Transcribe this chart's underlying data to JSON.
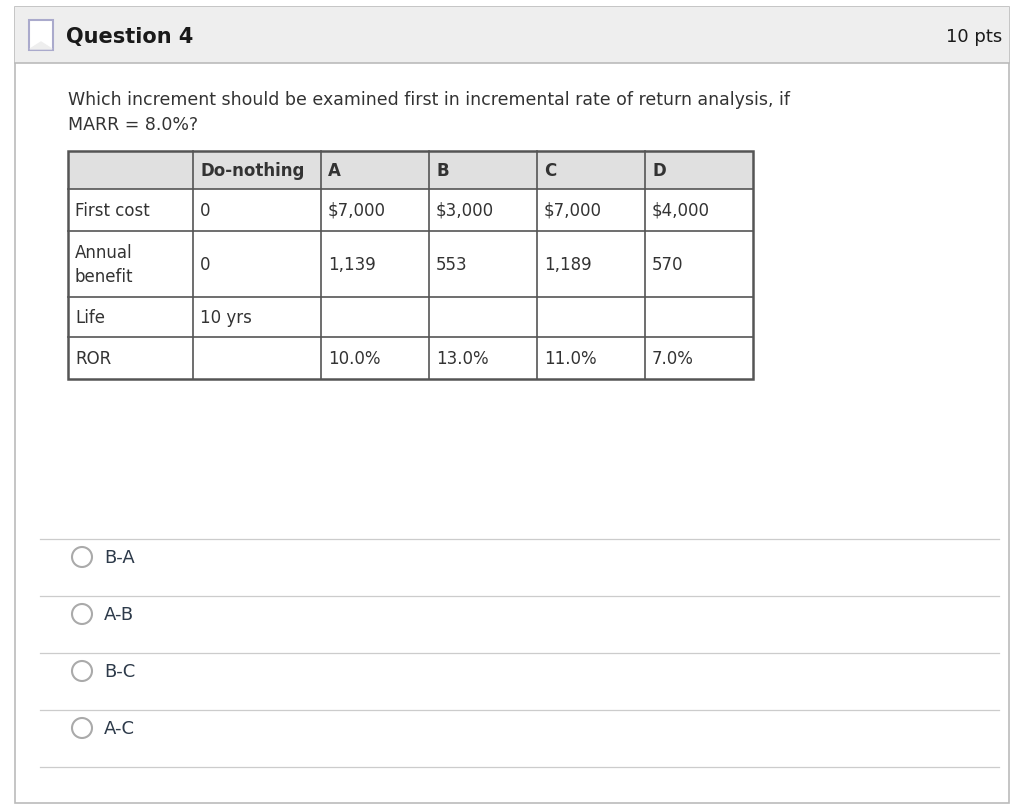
{
  "title": "Question 4",
  "pts": "10 pts",
  "question_text_line1": "Which increment should be examined first in incremental rate of return analysis, if",
  "question_text_line2": "MARR = 8.0%?",
  "table_headers": [
    "",
    "Do-nothing",
    "A",
    "B",
    "C",
    "D"
  ],
  "table_rows": [
    [
      "First cost",
      "0",
      "$7,000",
      "$3,000",
      "$7,000",
      "$4,000"
    ],
    [
      "Annual\nbenefit",
      "0",
      "1,139",
      "553",
      "1,189",
      "570"
    ],
    [
      "Life",
      "10 yrs",
      "",
      "",
      "",
      ""
    ],
    [
      "ROR",
      "",
      "10.0%",
      "13.0%",
      "11.0%",
      "7.0%"
    ]
  ],
  "options": [
    "B-A",
    "A-B",
    "B-C",
    "A-C"
  ],
  "white": "#ffffff",
  "header_bg": "#e0e0e0",
  "border_dark": "#555555",
  "text_color": "#333333",
  "sep_line_color": "#cccccc",
  "question_header_bg": "#eeeeee",
  "checkbox_color": "#aaaacc",
  "option_text_color": "#2d3a4a"
}
